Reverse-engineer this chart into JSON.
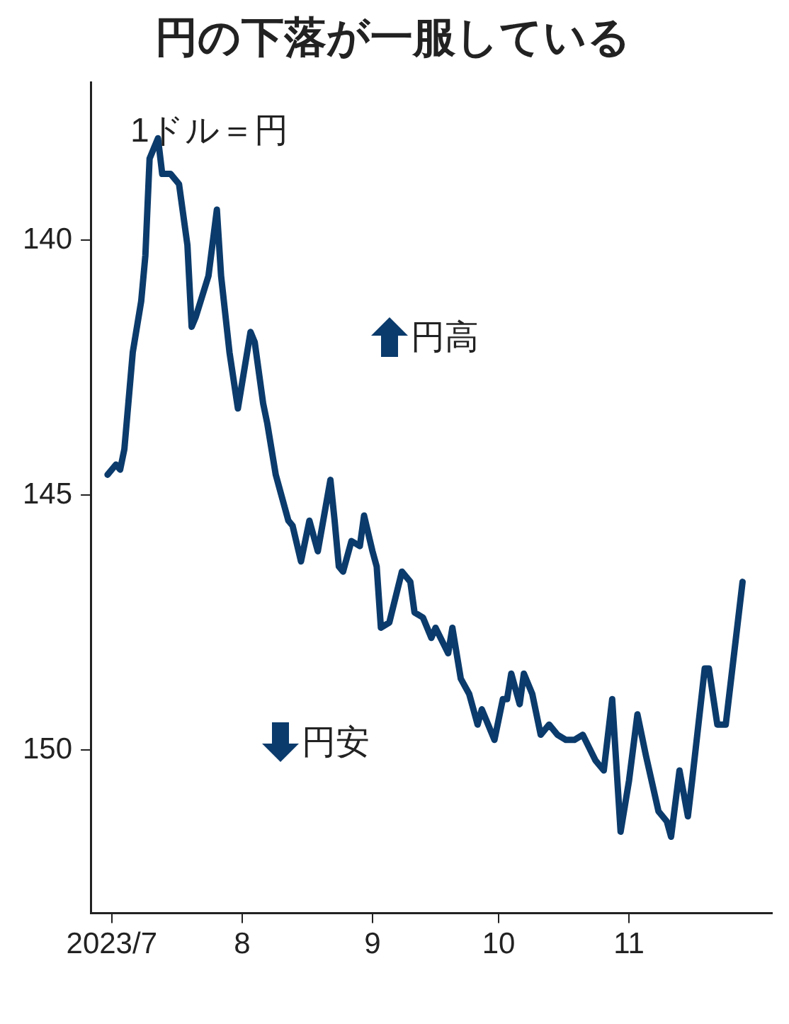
{
  "chart_data": {
    "type": "line",
    "title": "円の下落が一服している",
    "annotations": [
      "1ドル＝円",
      "円高",
      "円安"
    ],
    "x": [
      "2023-06-30",
      "2023-07-02",
      "2023-07-03",
      "2023-07-04",
      "2023-07-06",
      "2023-07-08",
      "2023-07-09",
      "2023-07-10",
      "2023-07-12",
      "2023-07-13",
      "2023-07-15",
      "2023-07-17",
      "2023-07-18",
      "2023-07-19",
      "2023-07-20",
      "2023-07-21",
      "2023-07-24",
      "2023-07-26",
      "2023-07-27",
      "2023-07-29",
      "2023-07-31",
      "2023-08-03",
      "2023-08-04",
      "2023-08-06",
      "2023-08-07",
      "2023-08-09",
      "2023-08-10",
      "2023-08-12",
      "2023-08-13",
      "2023-08-15",
      "2023-08-17",
      "2023-08-19",
      "2023-08-22",
      "2023-08-23",
      "2023-08-24",
      "2023-08-25",
      "2023-08-27",
      "2023-08-29",
      "2023-08-30",
      "2023-09-01",
      "2023-09-02",
      "2023-09-03",
      "2023-09-05",
      "2023-09-08",
      "2023-09-10",
      "2023-09-11",
      "2023-09-13",
      "2023-09-15",
      "2023-09-16",
      "2023-09-19",
      "2023-09-20",
      "2023-09-22",
      "2023-09-24",
      "2023-09-26",
      "2023-09-27",
      "2023-09-30",
      "2023-10-02",
      "2023-10-03",
      "2023-10-04",
      "2023-10-06",
      "2023-10-07",
      "2023-10-09",
      "2023-10-11",
      "2023-10-13",
      "2023-10-15",
      "2023-10-17",
      "2023-10-19",
      "2023-10-21",
      "2023-10-24",
      "2023-10-26",
      "2023-10-28",
      "2023-10-30",
      "2023-11-01",
      "2023-11-03",
      "2023-11-05",
      "2023-11-08",
      "2023-11-10",
      "2023-11-11",
      "2023-11-13",
      "2023-11-15",
      "2023-11-16",
      "2023-11-19",
      "2023-11-20",
      "2023-11-22",
      "2023-11-24",
      "2023-11-28"
    ],
    "series": [
      {
        "color": "#0b3b6c",
        "values": [
          144.6,
          144.4,
          144.5,
          144.1,
          142.2,
          141.2,
          140.3,
          138.4,
          138.0,
          138.7,
          138.7,
          138.9,
          139.5,
          140.1,
          141.7,
          141.5,
          140.7,
          139.4,
          140.7,
          142.2,
          143.3,
          141.8,
          142.0,
          143.2,
          143.6,
          144.6,
          144.9,
          145.5,
          145.6,
          146.3,
          145.5,
          146.1,
          144.7,
          145.5,
          146.4,
          146.5,
          145.9,
          146.0,
          145.4,
          146.1,
          146.4,
          147.6,
          147.5,
          146.5,
          146.7,
          147.3,
          147.4,
          147.8,
          147.6,
          148.1,
          147.6,
          148.6,
          148.9,
          149.5,
          149.2,
          149.8,
          149.0,
          149.0,
          148.5,
          149.1,
          148.5,
          148.9,
          149.7,
          149.5,
          149.7,
          149.8,
          149.8,
          149.7,
          150.2,
          150.4,
          149.0,
          151.6,
          150.6,
          149.3,
          150.1,
          151.2,
          151.4,
          151.7,
          150.4,
          151.3,
          150.6,
          148.4,
          148.4,
          149.5,
          149.5,
          146.7
        ]
      }
    ],
    "xlim": [
      "2023-06-26",
      "2023-12-05"
    ],
    "xticks": [
      {
        "value": "2023-07-01",
        "label": "2023/7"
      },
      {
        "value": "2023-08-01",
        "label": "8"
      },
      {
        "value": "2023-09-01",
        "label": "9"
      },
      {
        "value": "2023-10-01",
        "label": "10"
      },
      {
        "value": "2023-11-01",
        "label": "11"
      }
    ],
    "ylim": [
      153.2,
      136.9
    ],
    "yticks": [
      140,
      145,
      150
    ],
    "grid": false,
    "legend": false,
    "marker": "none",
    "line_style": "solid"
  }
}
